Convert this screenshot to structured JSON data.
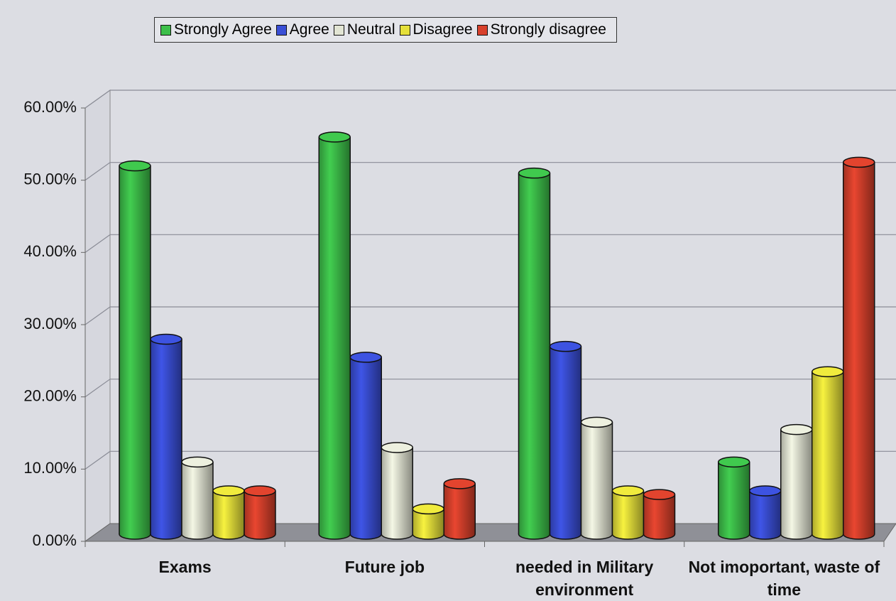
{
  "chart_data": {
    "type": "bar3d",
    "categories": [
      "Exams",
      "Future job",
      "needed in Military environment",
      "Not imoportant, waste of time"
    ],
    "series": [
      {
        "name": "Strongly Agree",
        "color": "#3dbf4a",
        "values": [
          51,
          55,
          50,
          10
        ]
      },
      {
        "name": "Agree",
        "color": "#3a4fd6",
        "values": [
          27,
          24.5,
          26,
          6
        ]
      },
      {
        "name": "Neutral",
        "color": "#e2e5d4",
        "values": [
          10,
          12,
          15.5,
          14.5
        ]
      },
      {
        "name": "Disagree",
        "color": "#e5e03a",
        "values": [
          6,
          3.5,
          6,
          22.5
        ]
      },
      {
        "name": "Strongly disagree",
        "color": "#d8412c",
        "values": [
          6,
          7,
          5.5,
          51.5
        ]
      }
    ],
    "ylim": [
      0,
      60
    ],
    "yticks": [
      {
        "value": 0,
        "label": "0.00%"
      },
      {
        "value": 10,
        "label": "10.00%"
      },
      {
        "value": 20,
        "label": "20.00%"
      },
      {
        "value": 30,
        "label": "30.00%"
      },
      {
        "value": 40,
        "label": "40.00%"
      },
      {
        "value": 50,
        "label": "50.00%"
      },
      {
        "value": 60,
        "label": "60.00%"
      }
    ],
    "grid": true,
    "legend": "top"
  }
}
